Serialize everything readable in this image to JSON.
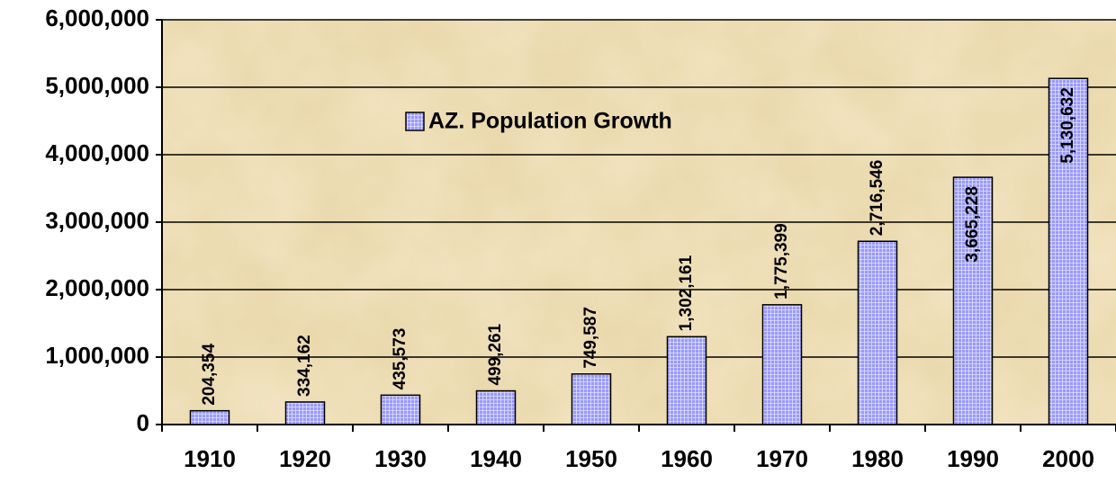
{
  "chart_data": {
    "type": "bar",
    "categories": [
      "1910",
      "1920",
      "1930",
      "1940",
      "1950",
      "1960",
      "1970",
      "1980",
      "1990",
      "2000"
    ],
    "series": [
      {
        "name": "AZ. Population Growth",
        "color": "#9999ff",
        "values": [
          204354,
          334162,
          435573,
          499261,
          749587,
          1302161,
          1775399,
          2716546,
          3665228,
          5130632
        ],
        "value_labels": [
          "204,354",
          "334,162",
          "435,573",
          "499,261",
          "749,587",
          "1,302,161",
          "1,775,399",
          "2,716,546",
          "3,665,228",
          "5,130,632"
        ]
      }
    ],
    "ylim": [
      0,
      6000000
    ],
    "yticks": [
      0,
      {
        "value": 1000000,
        "label": "1,000,000"
      },
      {
        "value": 2000000,
        "label": "2,000,000"
      },
      {
        "value": 3000000,
        "label": "3,000,000"
      },
      {
        "value": 4000000,
        "label": "4,000,000"
      },
      {
        "value": 5000000,
        "label": "5,000,000"
      },
      {
        "value": 6000000,
        "label": "6,000,000"
      }
    ],
    "grid": true,
    "legend": "top-left"
  }
}
